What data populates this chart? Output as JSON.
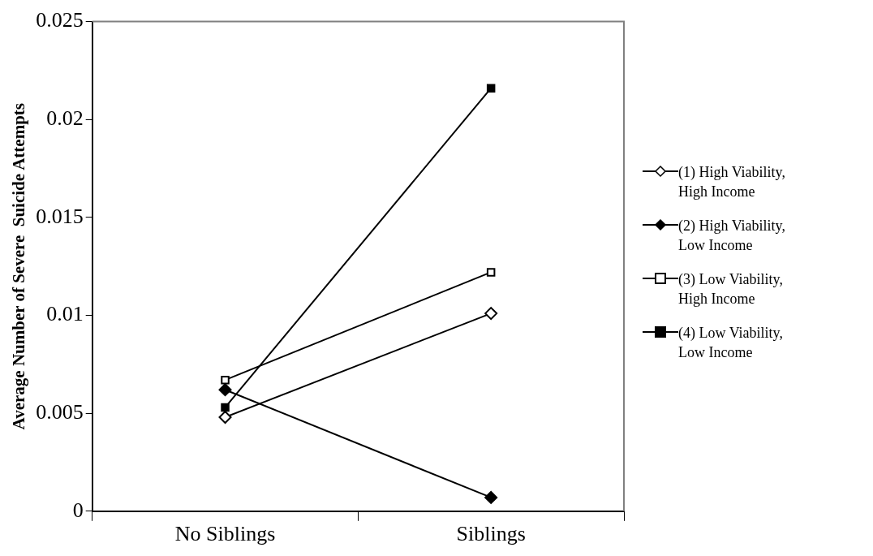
{
  "chart_data": {
    "type": "line",
    "ylabel": "Average Number of Severe  Suicide Attempts",
    "categories": [
      "No Siblings",
      "Siblings"
    ],
    "series": [
      {
        "name": "(1) High Viability, High Income",
        "color": "#000000",
        "marker": "diamond",
        "colors": [
          "#ffffff",
          "#ffffff"
        ],
        "values": [
          0.0048,
          0.0101
        ]
      },
      {
        "name": "(2) High Viability, Low Income",
        "color": "#000000",
        "marker": "diamond",
        "colors": [
          "#000000",
          "#000000"
        ],
        "values": [
          0.0062,
          0.0007
        ]
      },
      {
        "name": "(3) Low Viability, High Income",
        "color": "#000000",
        "marker": "square",
        "colors": [
          "#ffffff",
          "#ffffff"
        ],
        "values": [
          0.0067,
          0.0122
        ]
      },
      {
        "name": "(4) Low Viability, Low Income",
        "color": "#000000",
        "marker": "square",
        "colors": [
          "#000000",
          "#000000"
        ],
        "values": [
          0.0053,
          0.0216
        ]
      }
    ],
    "ylim": [
      0,
      0.025
    ],
    "yticks": [
      0,
      0.005,
      0.01,
      0.015,
      0.02,
      0.025
    ],
    "grid": false,
    "legend": "right",
    "line_style": "solid"
  }
}
